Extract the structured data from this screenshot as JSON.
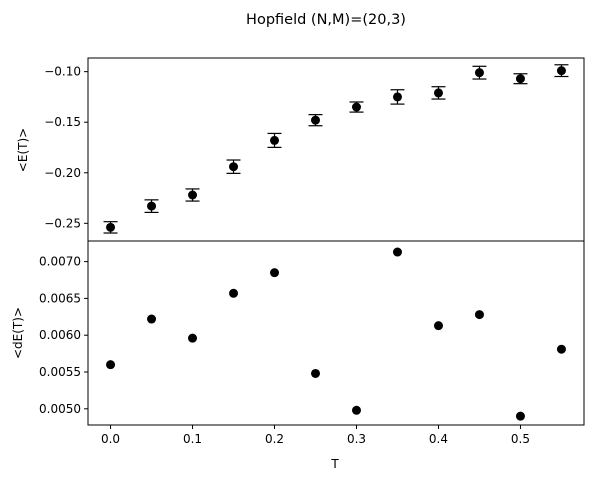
{
  "figure": {
    "title": "Hopfield (N,M)=(20,3)"
  },
  "chart_data": [
    {
      "type": "scatter",
      "panel": "top",
      "ylabel": "<E(T)>",
      "xlabel": "",
      "xlim": [
        -0.0275,
        0.5775
      ],
      "ylim": [
        -0.2675,
        -0.0865
      ],
      "yticks": [
        -0.25,
        -0.2,
        -0.15,
        -0.1
      ],
      "ytick_labels": [
        "−0.25",
        "−0.20",
        "−0.15",
        "−0.10"
      ],
      "grid": false,
      "marker_color": "#000000",
      "error_bars": true,
      "x": [
        0.0,
        0.05,
        0.1,
        0.15,
        0.2,
        0.25,
        0.3,
        0.35,
        0.4,
        0.45,
        0.5,
        0.55
      ],
      "y": [
        -0.254,
        -0.233,
        -0.222,
        -0.194,
        -0.168,
        -0.148,
        -0.135,
        -0.125,
        -0.121,
        -0.101,
        -0.107,
        -0.099
      ],
      "yerr": [
        0.0056,
        0.0062,
        0.006,
        0.0066,
        0.0069,
        0.0055,
        0.005,
        0.0071,
        0.0061,
        0.0063,
        0.0049,
        0.0058
      ]
    },
    {
      "type": "scatter",
      "panel": "bottom",
      "ylabel": "<dE(T)>",
      "xlabel": "T",
      "xlim": [
        -0.0275,
        0.5775
      ],
      "ylim": [
        0.00478,
        0.00728
      ],
      "xticks": [
        0.0,
        0.1,
        0.2,
        0.3,
        0.4,
        0.5
      ],
      "xtick_labels": [
        "0.0",
        "0.1",
        "0.2",
        "0.3",
        "0.4",
        "0.5"
      ],
      "yticks": [
        0.005,
        0.0055,
        0.006,
        0.0065,
        0.007
      ],
      "ytick_labels": [
        "0.0050",
        "0.0055",
        "0.0060",
        "0.0065",
        "0.0070"
      ],
      "grid": false,
      "marker_color": "#000000",
      "x": [
        0.0,
        0.05,
        0.1,
        0.15,
        0.2,
        0.25,
        0.3,
        0.35,
        0.4,
        0.45,
        0.5,
        0.55
      ],
      "y": [
        0.0056,
        0.00622,
        0.00596,
        0.00657,
        0.00685,
        0.00548,
        0.00498,
        0.00713,
        0.00613,
        0.00628,
        0.0049,
        0.00581
      ]
    }
  ]
}
